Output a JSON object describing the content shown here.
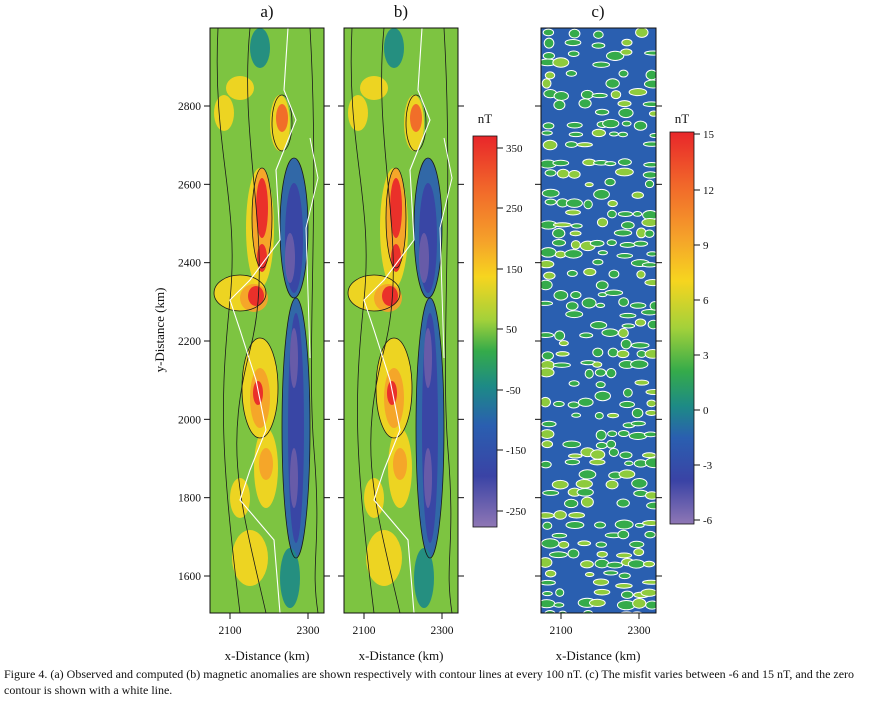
{
  "panels": [
    {
      "label": "a)"
    },
    {
      "label": "b)"
    },
    {
      "label": "c)"
    }
  ],
  "y_axis": {
    "label": "y-Distance (km)",
    "ticks": [
      "1600",
      "1800",
      "2000",
      "2200",
      "2400",
      "2600",
      "2800"
    ]
  },
  "x_axis": {
    "label": "x-Distance (km)",
    "ticks": [
      "2100",
      "2300"
    ]
  },
  "colorbars": [
    {
      "unit": "nT",
      "ticks": [
        "350",
        "250",
        "150",
        "50",
        "-50",
        "-150",
        "-250"
      ]
    },
    {
      "unit": "nT",
      "ticks": [
        "15",
        "12",
        "9",
        "6",
        "3",
        "0",
        "-3",
        "-6"
      ]
    }
  ],
  "caption": "Figure 4. (a) Observed and computed (b) magnetic anomalies are shown respectively with contour lines at every 100 nT. (c) The misfit varies between -6 and 15 nT, and the zero contour is shown with a white line.",
  "colors": {
    "anomaly_scale": [
      "#e8262a",
      "#f1652a",
      "#f5a22a",
      "#f6d51f",
      "#d8e02a",
      "#8ecb3d",
      "#35ab4a",
      "#1e8c8a",
      "#2a5fb0",
      "#3a43a5",
      "#6b5da8",
      "#8f77b5"
    ],
    "contour_line": "#1a1a1a",
    "coastline": "#ffffff"
  }
}
